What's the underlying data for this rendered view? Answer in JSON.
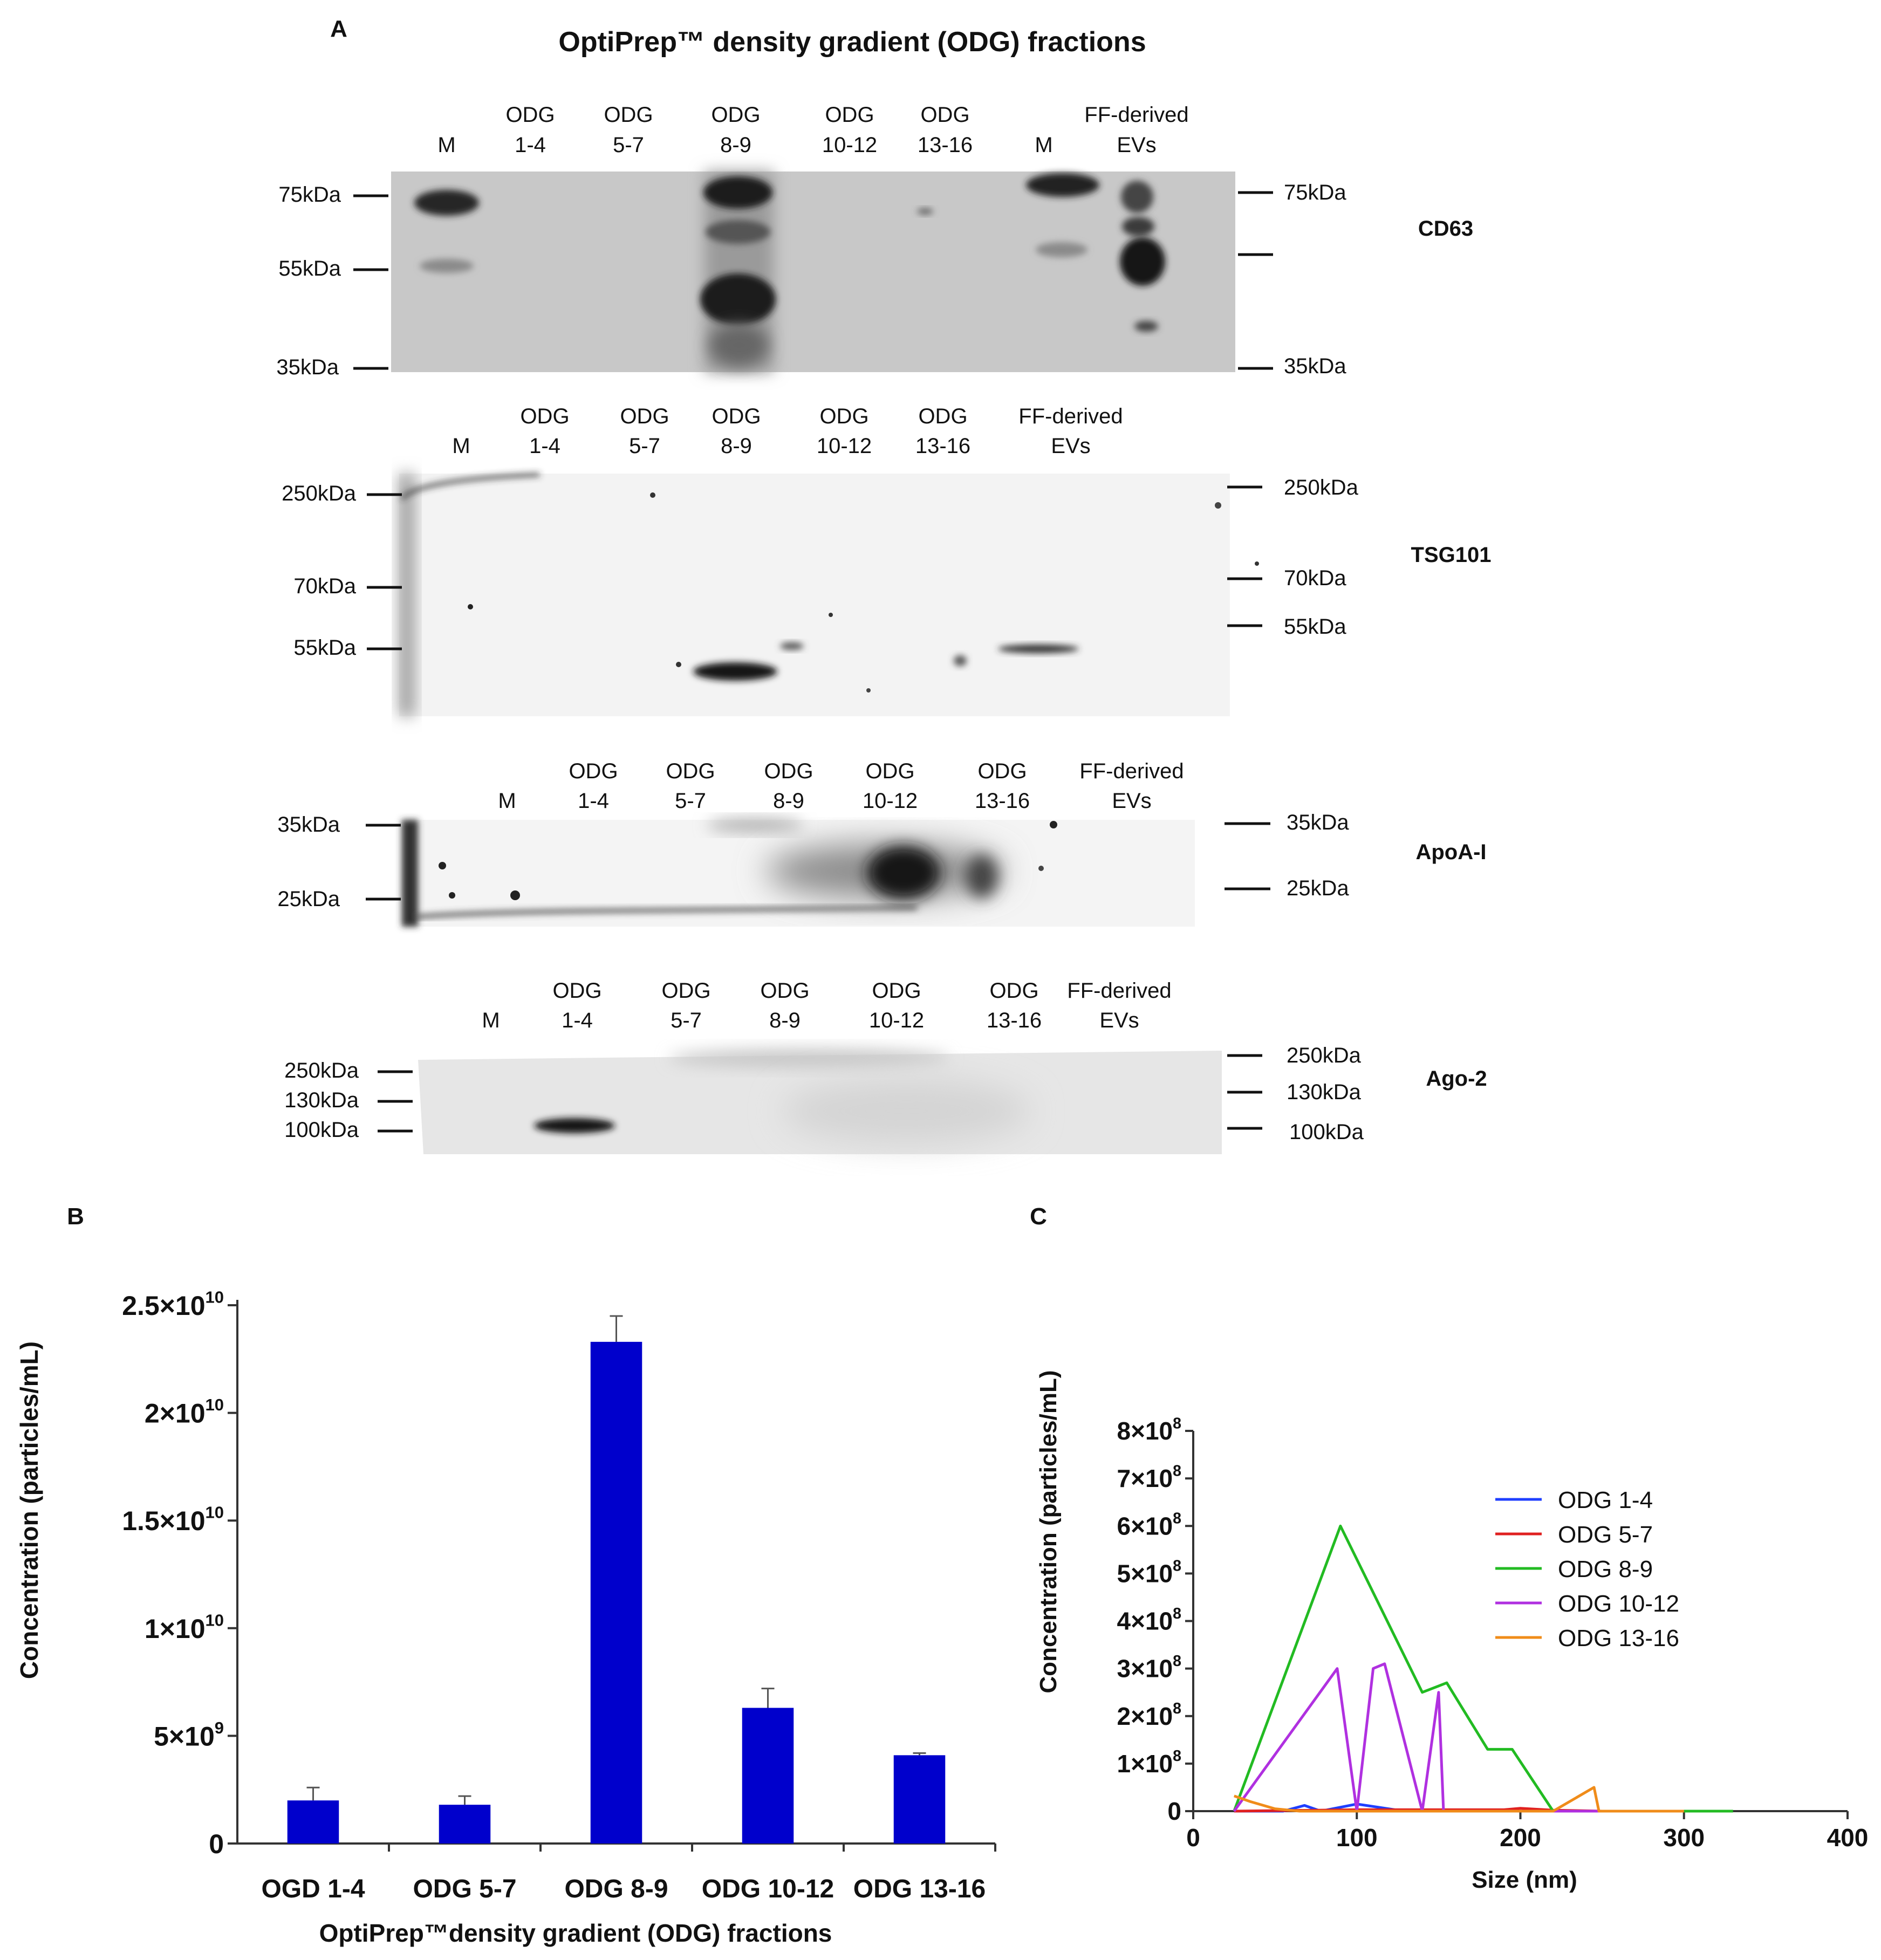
{
  "panel_a": {
    "label": "A",
    "title": "OptiPrep™ density gradient (ODG) fractions",
    "blots": [
      {
        "protein": "CD63",
        "lanes": [
          [
            "M"
          ],
          [
            "ODG",
            "1-4"
          ],
          [
            "ODG",
            "5-7"
          ],
          [
            "ODG",
            "8-9"
          ],
          [
            "ODG",
            "10-12"
          ],
          [
            "ODG",
            "13-16"
          ],
          [
            "M"
          ],
          [
            "FF-derived",
            "EVs"
          ]
        ],
        "left_markers": [
          "75kDa",
          "55kDa",
          "35kDa"
        ],
        "right_markers": [
          "75kDa",
          "",
          "35kDa"
        ]
      },
      {
        "protein": "TSG101",
        "lanes": [
          [
            "M"
          ],
          [
            "ODG",
            "1-4"
          ],
          [
            "ODG",
            "5-7"
          ],
          [
            "ODG",
            "8-9"
          ],
          [
            "ODG",
            "10-12"
          ],
          [
            "ODG",
            "13-16"
          ],
          [
            "FF-derived",
            "EVs"
          ]
        ],
        "left_markers": [
          "250kDa",
          "70kDa",
          "55kDa"
        ],
        "right_markers": [
          "250kDa",
          "70kDa",
          "55kDa"
        ]
      },
      {
        "protein": "ApoA-I",
        "lanes": [
          [
            "M"
          ],
          [
            "ODG",
            "1-4"
          ],
          [
            "ODG",
            "5-7"
          ],
          [
            "ODG",
            "8-9"
          ],
          [
            "ODG",
            "10-12"
          ],
          [
            "ODG",
            "13-16"
          ],
          [
            "FF-derived",
            "EVs"
          ]
        ],
        "left_markers": [
          "35kDa",
          "25kDa"
        ],
        "right_markers": [
          "35kDa",
          "25kDa"
        ]
      },
      {
        "protein": "Ago-2",
        "lanes": [
          [
            "M"
          ],
          [
            "ODG",
            "1-4"
          ],
          [
            "ODG",
            "5-7"
          ],
          [
            "ODG",
            "8-9"
          ],
          [
            "ODG",
            "10-12"
          ],
          [
            "ODG",
            "13-16"
          ],
          [
            "FF-derived",
            "EVs"
          ]
        ],
        "left_markers": [
          "250kDa",
          "130kDa",
          "100kDa"
        ],
        "right_markers": [
          "250kDa",
          "130kDa",
          "100kDa"
        ]
      }
    ]
  },
  "chart_data": [
    {
      "panel": "B",
      "type": "bar",
      "title": "",
      "categories": [
        "OGD 1-4",
        "ODG 5-7",
        "ODG 8-9",
        "ODG 10-12",
        "ODG 13-16"
      ],
      "values": [
        2000000000.0,
        1800000000.0,
        23300000000.0,
        6300000000.0,
        4100000000.0
      ],
      "errors": [
        600000000.0,
        400000000.0,
        1200000000.0,
        900000000.0,
        100000000.0
      ],
      "xlabel": "OptiPrep™density gradient (ODG) fractions",
      "ylabel": "Concentration (particles/mL)",
      "ylim": [
        0,
        25000000000.0
      ],
      "yticks": [
        {
          "value": 0,
          "mant": "0",
          "exp": ""
        },
        {
          "value": 5000000000.0,
          "mant": "5×10",
          "exp": "9"
        },
        {
          "value": 10000000000.0,
          "mant": "1×10",
          "exp": "10"
        },
        {
          "value": 15000000000.0,
          "mant": "1.5×10",
          "exp": "10"
        },
        {
          "value": 20000000000.0,
          "mant": "2×10",
          "exp": "10"
        },
        {
          "value": 25000000000.0,
          "mant": "2.5×10",
          "exp": "10"
        }
      ],
      "bar_color": "#0000cc"
    },
    {
      "panel": "C",
      "type": "line",
      "title": "",
      "xlabel": "Size (nm)",
      "ylabel": "Concentration (particles/mL)",
      "xlim": [
        0,
        400
      ],
      "ylim": [
        0,
        800000000.0
      ],
      "xticks": [
        0,
        100,
        200,
        300,
        400
      ],
      "yticks": [
        {
          "value": 0,
          "mant": "0",
          "exp": ""
        },
        {
          "value": 100000000.0,
          "mant": "1×10",
          "exp": "8"
        },
        {
          "value": 200000000.0,
          "mant": "2×10",
          "exp": "8"
        },
        {
          "value": 300000000.0,
          "mant": "3×10",
          "exp": "8"
        },
        {
          "value": 400000000.0,
          "mant": "4×10",
          "exp": "8"
        },
        {
          "value": 500000000.0,
          "mant": "5×10",
          "exp": "8"
        },
        {
          "value": 600000000.0,
          "mant": "6×10",
          "exp": "8"
        },
        {
          "value": 700000000.0,
          "mant": "7×10",
          "exp": "8"
        },
        {
          "value": 800000000.0,
          "mant": "8×10",
          "exp": "8"
        }
      ],
      "legend_position": "right",
      "series": [
        {
          "name": "ODG 1-4",
          "color": "#1f3fff",
          "x": [
            25,
            55,
            68,
            78,
            100,
            125,
            150,
            250
          ],
          "y": [
            0,
            0,
            12000000.0,
            0,
            15000000.0,
            2000000.0,
            0,
            0
          ]
        },
        {
          "name": "ODG 5-7",
          "color": "#e02020",
          "x": [
            25,
            100,
            190,
            200,
            220,
            250
          ],
          "y": [
            0,
            3000000.0,
            3000000.0,
            6000000.0,
            2000000.0,
            0
          ]
        },
        {
          "name": "ODG 8-9",
          "color": "#22bb22",
          "x": [
            25,
            90,
            140,
            155,
            180,
            195,
            220,
            250,
            330
          ],
          "y": [
            0,
            600000000.0,
            250000000.0,
            270000000.0,
            130000000.0,
            130000000.0,
            0,
            0,
            0
          ]
        },
        {
          "name": "ODG 10-12",
          "color": "#b030e0",
          "x": [
            25,
            88,
            100,
            110,
            117,
            140,
            150,
            153,
            160,
            250
          ],
          "y": [
            0,
            300000000.0,
            0,
            300000000.0,
            310000000.0,
            0,
            250000000.0,
            0,
            0,
            0
          ]
        },
        {
          "name": "ODG 13-16",
          "color": "#f08c1a",
          "x": [
            25,
            35,
            50,
            65,
            220,
            245,
            248,
            300
          ],
          "y": [
            32000000.0,
            20000000.0,
            5000000.0,
            0,
            0,
            50000000.0,
            0,
            0
          ]
        }
      ]
    }
  ]
}
